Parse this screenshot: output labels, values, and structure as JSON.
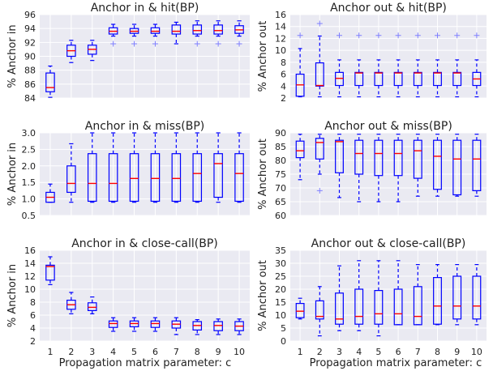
{
  "colors": {
    "box": "#0000ff",
    "median": "#ff0000",
    "whisker": "#0000ff",
    "flier": "#8080ff",
    "background": "#eaeaf2",
    "grid": "#ffffff"
  },
  "xlabel": "Propagation matrix parameter: c",
  "chart_data": [
    {
      "type": "box",
      "title": "Anchor in & hit(BP)",
      "ylabel": "% Anchor in",
      "categories": [
        "1",
        "2",
        "3",
        "4",
        "5",
        "6",
        "7",
        "8",
        "9",
        "10"
      ],
      "ylim": [
        84,
        96
      ],
      "yticks": [
        84,
        86,
        88,
        90,
        92,
        94,
        96
      ],
      "grid": true,
      "boxes": [
        {
          "whislo": 84.1,
          "q1": 84.9,
          "med": 85.5,
          "q3": 87.6,
          "whishi": 88.6,
          "fliers": []
        },
        {
          "whislo": 89.1,
          "q1": 90.0,
          "med": 90.8,
          "q3": 91.6,
          "whishi": 92.3,
          "fliers": []
        },
        {
          "whislo": 89.4,
          "q1": 90.3,
          "med": 91.0,
          "q3": 91.6,
          "whishi": 92.3,
          "fliers": []
        },
        {
          "whislo": 92.9,
          "q1": 93.2,
          "med": 93.6,
          "q3": 94.1,
          "whishi": 94.6,
          "fliers": [
            91.8
          ]
        },
        {
          "whislo": 92.9,
          "q1": 93.3,
          "med": 93.6,
          "q3": 94.0,
          "whishi": 94.6,
          "fliers": [
            91.8
          ]
        },
        {
          "whislo": 92.9,
          "q1": 93.3,
          "med": 93.6,
          "q3": 94.1,
          "whishi": 94.6,
          "fliers": [
            91.8
          ]
        },
        {
          "whislo": 91.8,
          "q1": 93.2,
          "med": 93.6,
          "q3": 94.5,
          "whishi": 94.9,
          "fliers": []
        },
        {
          "whislo": 92.9,
          "q1": 93.2,
          "med": 93.7,
          "q3": 94.5,
          "whishi": 95.1,
          "fliers": [
            91.8
          ]
        },
        {
          "whislo": 92.9,
          "q1": 93.2,
          "med": 93.7,
          "q3": 94.5,
          "whishi": 95.1,
          "fliers": [
            91.8
          ]
        },
        {
          "whislo": 92.9,
          "q1": 93.3,
          "med": 93.8,
          "q3": 94.4,
          "whishi": 95.1,
          "fliers": [
            91.8
          ]
        }
      ]
    },
    {
      "type": "box",
      "title": "Anchor out & hit(BP)",
      "ylabel": "% Anchor out",
      "categories": [
        "1",
        "2",
        "3",
        "4",
        "5",
        "6",
        "7",
        "8",
        "9",
        "10"
      ],
      "ylim": [
        2,
        16
      ],
      "yticks": [
        2,
        4,
        6,
        8,
        10,
        12,
        14,
        16
      ],
      "grid": true,
      "boxes": [
        {
          "whislo": 2.2,
          "q1": 2.3,
          "med": 4.2,
          "q3": 6.0,
          "whishi": 10.3,
          "fliers": [
            12.5
          ]
        },
        {
          "whislo": 2.2,
          "q1": 4.0,
          "med": 4.1,
          "q3": 7.9,
          "whishi": 12.4,
          "fliers": [
            14.5
          ]
        },
        {
          "whislo": 2.2,
          "q1": 4.1,
          "med": 5.3,
          "q3": 6.3,
          "whishi": 8.4,
          "fliers": [
            12.5
          ]
        },
        {
          "whislo": 2.2,
          "q1": 4.1,
          "med": 6.2,
          "q3": 6.3,
          "whishi": 8.4,
          "fliers": [
            12.5
          ]
        },
        {
          "whislo": 2.2,
          "q1": 4.1,
          "med": 6.2,
          "q3": 6.3,
          "whishi": 8.4,
          "fliers": [
            12.5
          ]
        },
        {
          "whislo": 2.2,
          "q1": 4.1,
          "med": 6.2,
          "q3": 6.3,
          "whishi": 8.4,
          "fliers": [
            12.5
          ]
        },
        {
          "whislo": 2.2,
          "q1": 4.1,
          "med": 6.2,
          "q3": 6.3,
          "whishi": 8.4,
          "fliers": [
            12.5
          ]
        },
        {
          "whislo": 2.2,
          "q1": 4.1,
          "med": 6.2,
          "q3": 6.3,
          "whishi": 8.4,
          "fliers": [
            12.5
          ]
        },
        {
          "whislo": 2.2,
          "q1": 4.1,
          "med": 6.2,
          "q3": 6.3,
          "whishi": 8.4,
          "fliers": [
            12.5
          ]
        },
        {
          "whislo": 2.2,
          "q1": 4.1,
          "med": 5.2,
          "q3": 6.3,
          "whishi": 8.4,
          "fliers": [
            12.5
          ]
        }
      ]
    },
    {
      "type": "box",
      "title": "Anchor in & miss(BP)",
      "ylabel": "% Anchor in",
      "categories": [
        "1",
        "2",
        "3",
        "4",
        "5",
        "6",
        "7",
        "8",
        "9",
        "10"
      ],
      "ylim": [
        0.5,
        3.0
      ],
      "yticks": [
        0.5,
        1.0,
        1.5,
        2.0,
        2.5,
        3.0
      ],
      "grid": true,
      "boxes": [
        {
          "whislo": 0.9,
          "q1": 0.9,
          "med": 1.05,
          "q3": 1.2,
          "whishi": 1.45,
          "fliers": []
        },
        {
          "whislo": 0.9,
          "q1": 1.2,
          "med": 1.47,
          "q3": 2.0,
          "whishi": 2.67,
          "fliers": []
        },
        {
          "whislo": 0.9,
          "q1": 0.93,
          "med": 1.47,
          "q3": 2.37,
          "whishi": 3.0,
          "fliers": []
        },
        {
          "whislo": 0.9,
          "q1": 0.93,
          "med": 1.47,
          "q3": 2.37,
          "whishi": 3.0,
          "fliers": []
        },
        {
          "whislo": 0.9,
          "q1": 0.93,
          "med": 1.62,
          "q3": 2.37,
          "whishi": 3.0,
          "fliers": []
        },
        {
          "whislo": 0.9,
          "q1": 0.93,
          "med": 1.62,
          "q3": 2.37,
          "whishi": 3.0,
          "fliers": []
        },
        {
          "whislo": 0.9,
          "q1": 0.93,
          "med": 1.62,
          "q3": 2.37,
          "whishi": 3.0,
          "fliers": []
        },
        {
          "whislo": 0.9,
          "q1": 0.93,
          "med": 1.77,
          "q3": 2.37,
          "whishi": 3.0,
          "fliers": []
        },
        {
          "whislo": 0.9,
          "q1": 1.05,
          "med": 2.07,
          "q3": 2.37,
          "whishi": 3.0,
          "fliers": []
        },
        {
          "whislo": 0.9,
          "q1": 0.93,
          "med": 1.77,
          "q3": 2.37,
          "whishi": 3.0,
          "fliers": []
        }
      ]
    },
    {
      "type": "box",
      "title": "Anchor out & miss(BP)",
      "ylabel": "% Anchor out",
      "categories": [
        "1",
        "2",
        "3",
        "4",
        "5",
        "6",
        "7",
        "8",
        "9",
        "10"
      ],
      "ylim": [
        60,
        90
      ],
      "yticks": [
        60,
        65,
        70,
        75,
        80,
        85,
        90
      ],
      "grid": true,
      "boxes": [
        {
          "whislo": 73,
          "q1": 81,
          "med": 83.5,
          "q3": 87,
          "whishi": 89.5,
          "fliers": []
        },
        {
          "whislo": 75,
          "q1": 80.5,
          "med": 86.5,
          "q3": 88,
          "whishi": 89.5,
          "fliers": [
            69
          ]
        },
        {
          "whislo": 66.5,
          "q1": 75.5,
          "med": 86.8,
          "q3": 87.3,
          "whishi": 89.5,
          "fliers": []
        },
        {
          "whislo": 65,
          "q1": 75,
          "med": 82.5,
          "q3": 87.3,
          "whishi": 89.5,
          "fliers": []
        },
        {
          "whislo": 65,
          "q1": 74.5,
          "med": 82.5,
          "q3": 87.3,
          "whishi": 89.5,
          "fliers": []
        },
        {
          "whislo": 65,
          "q1": 74.5,
          "med": 82.5,
          "q3": 87.3,
          "whishi": 89.5,
          "fliers": []
        },
        {
          "whislo": 67,
          "q1": 73.5,
          "med": 83.5,
          "q3": 87.3,
          "whishi": 89.5,
          "fliers": []
        },
        {
          "whislo": 67,
          "q1": 69.5,
          "med": 81.5,
          "q3": 87.3,
          "whishi": 89.5,
          "fliers": []
        },
        {
          "whislo": 67,
          "q1": 67.5,
          "med": 80.5,
          "q3": 87.3,
          "whishi": 89.5,
          "fliers": []
        },
        {
          "whislo": 67,
          "q1": 69,
          "med": 80.5,
          "q3": 87.3,
          "whishi": 89.5,
          "fliers": []
        }
      ]
    },
    {
      "type": "box",
      "title": "Anchor in & close-call(BP)",
      "ylabel": "% Anchor in",
      "categories": [
        "1",
        "2",
        "3",
        "4",
        "5",
        "6",
        "7",
        "8",
        "9",
        "10"
      ],
      "ylim": [
        2,
        16
      ],
      "yticks": [
        2,
        4,
        6,
        8,
        10,
        12,
        14,
        16
      ],
      "grid": true,
      "boxes": [
        {
          "whislo": 10.7,
          "q1": 11.4,
          "med": 13.5,
          "q3": 13.7,
          "whishi": 15.0,
          "fliers": []
        },
        {
          "whislo": 6.2,
          "q1": 6.9,
          "med": 7.6,
          "q3": 8.3,
          "whishi": 9.5,
          "fliers": []
        },
        {
          "whislo": 6.2,
          "q1": 6.7,
          "med": 7.2,
          "q3": 7.9,
          "whishi": 8.8,
          "fliers": []
        },
        {
          "whislo": 3.5,
          "q1": 4.1,
          "med": 4.7,
          "q3": 5.1,
          "whishi": 5.6,
          "fliers": []
        },
        {
          "whislo": 3.5,
          "q1": 4.2,
          "med": 4.7,
          "q3": 5.1,
          "whishi": 5.6,
          "fliers": []
        },
        {
          "whislo": 3.5,
          "q1": 4.1,
          "med": 4.7,
          "q3": 5.1,
          "whishi": 5.6,
          "fliers": []
        },
        {
          "whislo": 3.0,
          "q1": 4.0,
          "med": 4.6,
          "q3": 5.1,
          "whishi": 5.6,
          "fliers": []
        },
        {
          "whislo": 3.0,
          "q1": 3.7,
          "med": 4.4,
          "q3": 5.0,
          "whishi": 5.3,
          "fliers": []
        },
        {
          "whislo": 3.0,
          "q1": 3.6,
          "med": 4.4,
          "q3": 5.0,
          "whishi": 5.4,
          "fliers": []
        },
        {
          "whislo": 3.0,
          "q1": 3.6,
          "med": 4.3,
          "q3": 5.0,
          "whishi": 5.4,
          "fliers": []
        }
      ]
    },
    {
      "type": "box",
      "title": "Anchor out & close-call(BP)",
      "ylabel": "% Anchor out",
      "categories": [
        "1",
        "2",
        "3",
        "4",
        "5",
        "6",
        "7",
        "8",
        "9",
        "10"
      ],
      "ylim": [
        0,
        35
      ],
      "yticks": [
        0,
        5,
        10,
        15,
        20,
        25,
        30,
        35
      ],
      "grid": true,
      "boxes": [
        {
          "whislo": 8.5,
          "q1": 9,
          "med": 11.5,
          "q3": 14.5,
          "whishi": 16.5,
          "fliers": []
        },
        {
          "whislo": 2,
          "q1": 8.5,
          "med": 9.5,
          "q3": 15.5,
          "whishi": 21,
          "fliers": []
        },
        {
          "whislo": 4,
          "q1": 6.5,
          "med": 8.5,
          "q3": 18.5,
          "whishi": 29,
          "fliers": []
        },
        {
          "whislo": 4,
          "q1": 6.5,
          "med": 9.5,
          "q3": 20,
          "whishi": 31,
          "fliers": []
        },
        {
          "whislo": 2,
          "q1": 6.5,
          "med": 10.5,
          "q3": 19.5,
          "whishi": 31,
          "fliers": []
        },
        {
          "whislo": 6.3,
          "q1": 6.3,
          "med": 10.5,
          "q3": 20,
          "whishi": 31,
          "fliers": []
        },
        {
          "whislo": 6.3,
          "q1": 6.3,
          "med": 9.5,
          "q3": 21,
          "whishi": 29.5,
          "fliers": []
        },
        {
          "whislo": 6.3,
          "q1": 6.5,
          "med": 13.5,
          "q3": 24.5,
          "whishi": 29.5,
          "fliers": []
        },
        {
          "whislo": 6.3,
          "q1": 8.5,
          "med": 13.5,
          "q3": 25,
          "whishi": 29.5,
          "fliers": []
        },
        {
          "whislo": 6.3,
          "q1": 8.5,
          "med": 13.5,
          "q3": 25,
          "whishi": 29.5,
          "fliers": []
        }
      ]
    }
  ]
}
